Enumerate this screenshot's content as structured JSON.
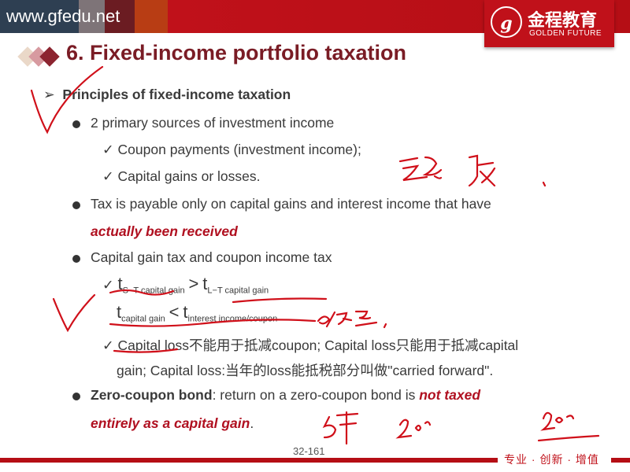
{
  "header": {
    "url": "www.gfedu.net",
    "logo_cn": "金程教育",
    "logo_en": "GOLDEN FUTURE",
    "logo_mark": "g",
    "colors": [
      "#2e3f52",
      "#7e7478",
      "#6b1c22",
      "#b83d14",
      "#c0111a"
    ]
  },
  "title": "6. Fixed-income portfolio taxation",
  "content": {
    "heading": "Principles of fixed-income taxation",
    "b1": "2 primary sources of investment income",
    "b1a": "Coupon payments (investment income);",
    "b1b": "Capital gains or losses.",
    "b2": "Tax is payable only on capital gains and interest income that have",
    "b2em": "actually been received",
    "b3": "Capital gain tax and coupon income tax",
    "f1": {
      "t": "t",
      "s1": "S−T capital gain",
      "op": ">",
      "s2": "L−T capital gain"
    },
    "f2": {
      "t": "t",
      "s1": "capital gain",
      "op": "<",
      "s2": "interest income/coupon"
    },
    "b3c1": "Capital loss不能用于抵减coupon; Capital loss只能用于抵减capital",
    "b3c2": "gain; Capital loss:当年的loss能抵税部分叫做\"carried forward\".",
    "b4bold": "Zero-coupon bond",
    "b4": ": return on a zero-coupon bond is ",
    "b4em": "not taxed",
    "b4em2": "entirely as a capital gain",
    "b4end": "."
  },
  "footer": {
    "page": "32-161",
    "slogan": "专业 · 创新 · 增值"
  },
  "check": "✓",
  "arrow": "➢"
}
